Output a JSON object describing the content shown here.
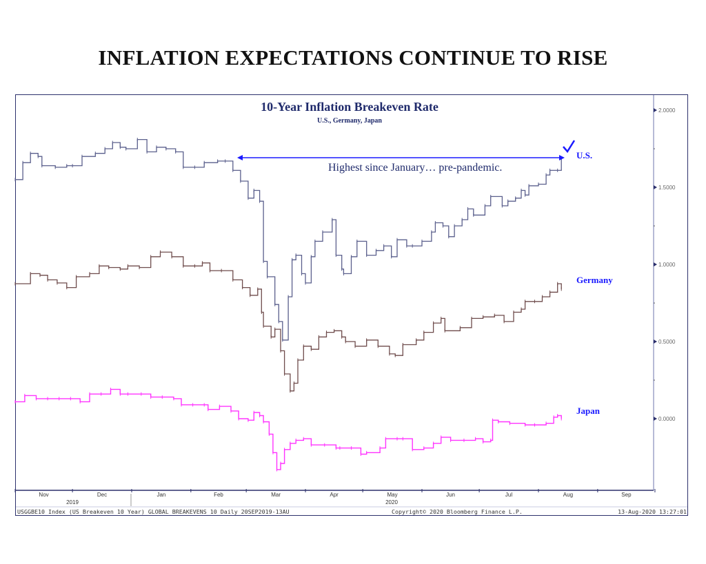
{
  "page_title": "INFLATION EXPECTATIONS CONTINUE TO RISE",
  "chart_data": {
    "type": "line",
    "title": "10-Year Inflation Breakeven Rate",
    "subtitle": "U.S., Germany, Japan",
    "x_axis": {
      "type": "date",
      "month_labels": [
        "Nov",
        "Dec",
        "Jan",
        "Feb",
        "Mar",
        "Apr",
        "May",
        "Jun",
        "Jul",
        "Aug",
        "Sep"
      ],
      "year_labels": [
        "2019",
        "2020"
      ]
    },
    "y_axis": {
      "position": "right",
      "ticks": [
        "2.0000",
        "1.5000",
        "1.0000",
        "0.5000",
        "0.0000"
      ],
      "ylim": [
        -0.45,
        2.1
      ]
    },
    "grid": false,
    "series": [
      {
        "name": "U.S.",
        "color": "#5a5f8c",
        "points": [
          [
            "2019-11-01",
            1.55
          ],
          [
            "2019-11-05",
            1.66
          ],
          [
            "2019-11-09",
            1.72
          ],
          [
            "2019-11-13",
            1.7
          ],
          [
            "2019-11-15",
            1.64
          ],
          [
            "2019-11-22",
            1.63
          ],
          [
            "2019-11-28",
            1.64
          ],
          [
            "2019-12-01",
            1.64
          ],
          [
            "2019-12-06",
            1.7
          ],
          [
            "2019-12-13",
            1.72
          ],
          [
            "2019-12-18",
            1.75
          ],
          [
            "2019-12-22",
            1.79
          ],
          [
            "2019-12-26",
            1.76
          ],
          [
            "2019-12-29",
            1.75
          ],
          [
            "2020-01-04",
            1.81
          ],
          [
            "2020-01-09",
            1.73
          ],
          [
            "2020-01-14",
            1.76
          ],
          [
            "2020-01-19",
            1.75
          ],
          [
            "2020-01-24",
            1.73
          ],
          [
            "2020-01-28",
            1.63
          ],
          [
            "2020-02-03",
            1.63
          ],
          [
            "2020-02-08",
            1.66
          ],
          [
            "2020-02-15",
            1.67
          ],
          [
            "2020-02-19",
            1.67
          ],
          [
            "2020-02-23",
            1.61
          ],
          [
            "2020-02-27",
            1.54
          ],
          [
            "2020-03-02",
            1.43
          ],
          [
            "2020-03-05",
            1.48
          ],
          [
            "2020-03-08",
            1.41
          ],
          [
            "2020-03-10",
            1.02
          ],
          [
            "2020-03-12",
            0.92
          ],
          [
            "2020-03-16",
            0.74
          ],
          [
            "2020-03-18",
            0.63
          ],
          [
            "2020-03-20",
            0.51
          ],
          [
            "2020-03-23",
            0.79
          ],
          [
            "2020-03-25",
            1.03
          ],
          [
            "2020-03-27",
            1.06
          ],
          [
            "2020-03-30",
            0.94
          ],
          [
            "2020-04-01",
            0.88
          ],
          [
            "2020-04-04",
            1.05
          ],
          [
            "2020-04-06",
            1.15
          ],
          [
            "2020-04-10",
            1.21
          ],
          [
            "2020-04-15",
            1.29
          ],
          [
            "2020-04-17",
            1.06
          ],
          [
            "2020-04-20",
            0.97
          ],
          [
            "2020-04-21",
            0.94
          ],
          [
            "2020-04-25",
            1.05
          ],
          [
            "2020-04-28",
            1.15
          ],
          [
            "2020-05-03",
            1.06
          ],
          [
            "2020-05-08",
            1.09
          ],
          [
            "2020-05-12",
            1.12
          ],
          [
            "2020-05-16",
            1.05
          ],
          [
            "2020-05-19",
            1.16
          ],
          [
            "2020-05-24",
            1.12
          ],
          [
            "2020-05-27",
            1.12
          ],
          [
            "2020-06-01",
            1.15
          ],
          [
            "2020-06-06",
            1.21
          ],
          [
            "2020-06-08",
            1.27
          ],
          [
            "2020-06-12",
            1.25
          ],
          [
            "2020-06-15",
            1.18
          ],
          [
            "2020-06-18",
            1.25
          ],
          [
            "2020-06-22",
            1.29
          ],
          [
            "2020-06-25",
            1.36
          ],
          [
            "2020-06-28",
            1.32
          ],
          [
            "2020-07-04",
            1.38
          ],
          [
            "2020-07-07",
            1.44
          ],
          [
            "2020-07-13",
            1.38
          ],
          [
            "2020-07-16",
            1.41
          ],
          [
            "2020-07-20",
            1.43
          ],
          [
            "2020-07-23",
            1.48
          ],
          [
            "2020-07-25",
            1.45
          ],
          [
            "2020-07-27",
            1.51
          ],
          [
            "2020-08-01",
            1.52
          ],
          [
            "2020-08-05",
            1.58
          ],
          [
            "2020-08-07",
            1.61
          ],
          [
            "2020-08-11",
            1.61
          ],
          [
            "2020-08-13",
            1.69
          ]
        ]
      },
      {
        "name": "Germany",
        "color": "#6e4b4b",
        "points": [
          [
            "2019-11-01",
            0.875
          ],
          [
            "2019-11-09",
            0.94
          ],
          [
            "2019-11-14",
            0.93
          ],
          [
            "2019-11-18",
            0.9
          ],
          [
            "2019-11-23",
            0.88
          ],
          [
            "2019-11-28",
            0.85
          ],
          [
            "2019-12-03",
            0.92
          ],
          [
            "2019-12-10",
            0.94
          ],
          [
            "2019-12-15",
            0.99
          ],
          [
            "2019-12-20",
            0.98
          ],
          [
            "2019-12-26",
            0.97
          ],
          [
            "2019-12-30",
            0.99
          ],
          [
            "2020-01-05",
            0.98
          ],
          [
            "2020-01-11",
            1.05
          ],
          [
            "2020-01-16",
            1.08
          ],
          [
            "2020-01-22",
            1.05
          ],
          [
            "2020-01-28",
            0.99
          ],
          [
            "2020-02-03",
            0.99
          ],
          [
            "2020-02-07",
            1.01
          ],
          [
            "2020-02-11",
            0.96
          ],
          [
            "2020-02-17",
            0.96
          ],
          [
            "2020-02-23",
            0.9
          ],
          [
            "2020-02-28",
            0.85
          ],
          [
            "2020-03-03",
            0.8
          ],
          [
            "2020-03-07",
            0.84
          ],
          [
            "2020-03-09",
            0.69
          ],
          [
            "2020-03-10",
            0.6
          ],
          [
            "2020-03-14",
            0.53
          ],
          [
            "2020-03-16",
            0.58
          ],
          [
            "2020-03-19",
            0.44
          ],
          [
            "2020-03-21",
            0.29
          ],
          [
            "2020-03-24",
            0.18
          ],
          [
            "2020-03-26",
            0.23
          ],
          [
            "2020-03-28",
            0.38
          ],
          [
            "2020-03-31",
            0.47
          ],
          [
            "2020-04-04",
            0.45
          ],
          [
            "2020-04-08",
            0.53
          ],
          [
            "2020-04-12",
            0.56
          ],
          [
            "2020-04-16",
            0.57
          ],
          [
            "2020-04-20",
            0.53
          ],
          [
            "2020-04-22",
            0.5
          ],
          [
            "2020-04-27",
            0.47
          ],
          [
            "2020-05-03",
            0.51
          ],
          [
            "2020-05-09",
            0.47
          ],
          [
            "2020-05-15",
            0.42
          ],
          [
            "2020-05-18",
            0.41
          ],
          [
            "2020-05-22",
            0.48
          ],
          [
            "2020-05-29",
            0.51
          ],
          [
            "2020-06-02",
            0.56
          ],
          [
            "2020-06-07",
            0.62
          ],
          [
            "2020-06-11",
            0.65
          ],
          [
            "2020-06-13",
            0.57
          ],
          [
            "2020-06-21",
            0.59
          ],
          [
            "2020-06-27",
            0.65
          ],
          [
            "2020-07-03",
            0.66
          ],
          [
            "2020-07-09",
            0.67
          ],
          [
            "2020-07-14",
            0.63
          ],
          [
            "2020-07-19",
            0.69
          ],
          [
            "2020-07-23",
            0.71
          ],
          [
            "2020-07-25",
            0.76
          ],
          [
            "2020-07-30",
            0.76
          ],
          [
            "2020-08-03",
            0.79
          ],
          [
            "2020-08-07",
            0.82
          ],
          [
            "2020-08-11",
            0.875
          ],
          [
            "2020-08-13",
            0.84
          ]
        ]
      },
      {
        "name": "Japan",
        "color": "#ff33ff",
        "points": [
          [
            "2019-11-01",
            0.11
          ],
          [
            "2019-11-06",
            0.15
          ],
          [
            "2019-11-12",
            0.13
          ],
          [
            "2019-11-18",
            0.13
          ],
          [
            "2019-11-24",
            0.13
          ],
          [
            "2019-11-30",
            0.13
          ],
          [
            "2019-12-05",
            0.11
          ],
          [
            "2019-12-10",
            0.16
          ],
          [
            "2019-12-16",
            0.16
          ],
          [
            "2019-12-21",
            0.19
          ],
          [
            "2019-12-26",
            0.16
          ],
          [
            "2019-12-30",
            0.16
          ],
          [
            "2020-01-06",
            0.16
          ],
          [
            "2020-01-11",
            0.14
          ],
          [
            "2020-01-17",
            0.14
          ],
          [
            "2020-01-23",
            0.13
          ],
          [
            "2020-01-27",
            0.09
          ],
          [
            "2020-02-02",
            0.09
          ],
          [
            "2020-02-08",
            0.09
          ],
          [
            "2020-02-10",
            0.06
          ],
          [
            "2020-02-16",
            0.08
          ],
          [
            "2020-02-22",
            0.05
          ],
          [
            "2020-02-26",
            0.0
          ],
          [
            "2020-03-02",
            -0.01
          ],
          [
            "2020-03-05",
            0.04
          ],
          [
            "2020-03-08",
            0.02
          ],
          [
            "2020-03-10",
            -0.02
          ],
          [
            "2020-03-13",
            -0.1
          ],
          [
            "2020-03-15",
            -0.22
          ],
          [
            "2020-03-17",
            -0.33
          ],
          [
            "2020-03-19",
            -0.29
          ],
          [
            "2020-03-21",
            -0.2
          ],
          [
            "2020-03-24",
            -0.16
          ],
          [
            "2020-03-27",
            -0.14
          ],
          [
            "2020-03-31",
            -0.13
          ],
          [
            "2020-04-04",
            -0.17
          ],
          [
            "2020-04-11",
            -0.17
          ],
          [
            "2020-04-17",
            -0.19
          ],
          [
            "2020-04-19",
            -0.19
          ],
          [
            "2020-04-25",
            -0.19
          ],
          [
            "2020-04-30",
            -0.23
          ],
          [
            "2020-05-03",
            -0.22
          ],
          [
            "2020-05-10",
            -0.19
          ],
          [
            "2020-05-13",
            -0.13
          ],
          [
            "2020-05-19",
            -0.13
          ],
          [
            "2020-05-22",
            -0.13
          ],
          [
            "2020-05-27",
            -0.2
          ],
          [
            "2020-06-02",
            -0.19
          ],
          [
            "2020-06-07",
            -0.16
          ],
          [
            "2020-06-11",
            -0.12
          ],
          [
            "2020-06-16",
            -0.14
          ],
          [
            "2020-06-23",
            -0.14
          ],
          [
            "2020-06-29",
            -0.13
          ],
          [
            "2020-07-03",
            -0.15
          ],
          [
            "2020-07-07",
            -0.14
          ],
          [
            "2020-07-08",
            -0.01
          ],
          [
            "2020-07-11",
            -0.02
          ],
          [
            "2020-07-17",
            -0.03
          ],
          [
            "2020-07-25",
            -0.04
          ],
          [
            "2020-07-30",
            -0.04
          ],
          [
            "2020-08-05",
            -0.03
          ],
          [
            "2020-08-09",
            0.01
          ],
          [
            "2020-08-11",
            0.02
          ],
          [
            "2020-08-13",
            0.0
          ]
        ]
      }
    ],
    "annotations": {
      "callout": "Highest since January… pre-pandemic.",
      "check_icon": "checkmark-icon",
      "arrow_color": "#1a1aff",
      "label_color": "#1a1aff"
    },
    "footer": {
      "source": "USGGBE10 Index (US Breakeven 10 Year) GLOBAL BREAKEVENS 10  Daily 20SEP2019-13AU",
      "copyright": "Copyright© 2020 Bloomberg Finance L.P.",
      "timestamp": "13-Aug-2020 13:27:01"
    }
  }
}
